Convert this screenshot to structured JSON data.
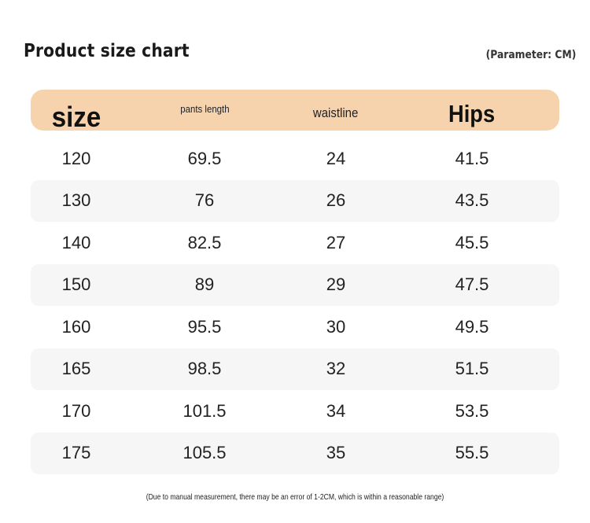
{
  "title": "Product size chart",
  "parameter": "(Parameter: CM)",
  "columns": [
    "size",
    "pants length",
    "waistline",
    "Hips"
  ],
  "rows": [
    [
      "120",
      "69.5",
      "24",
      "41.5"
    ],
    [
      "130",
      "76",
      "26",
      "43.5"
    ],
    [
      "140",
      "82.5",
      "27",
      "45.5"
    ],
    [
      "150",
      "89",
      "29",
      "47.5"
    ],
    [
      "160",
      "95.5",
      "30",
      "49.5"
    ],
    [
      "165",
      "98.5",
      "32",
      "51.5"
    ],
    [
      "170",
      "101.5",
      "34",
      "53.5"
    ],
    [
      "175",
      "105.5",
      "35",
      "55.5"
    ]
  ],
  "note": "(Due to manual measurement, there may be an error of 1-2CM, which is within a reasonable range)",
  "colors": {
    "header_bg": "#f7d3ad",
    "alt_row_bg": "#f6f6f6"
  }
}
